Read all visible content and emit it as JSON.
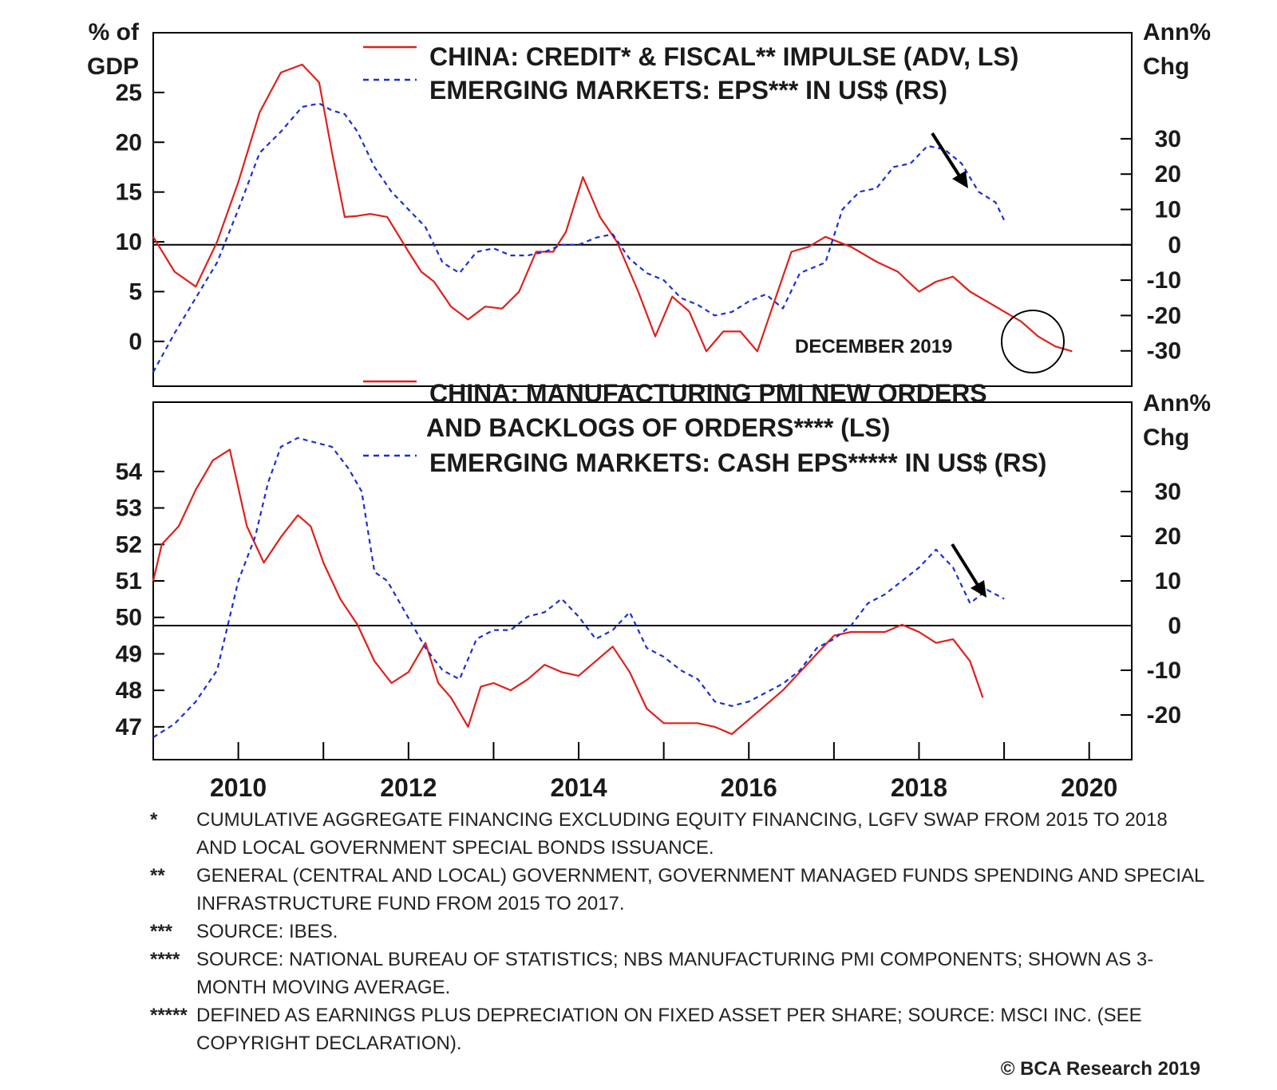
{
  "chart_data": [
    {
      "type": "line",
      "panel": "top",
      "left_axis": {
        "title_lines": [
          "% of",
          "GDP"
        ],
        "ticks": [
          0,
          5,
          10,
          15,
          20,
          25
        ],
        "range": [
          -4.5,
          31
        ]
      },
      "right_axis": {
        "title_lines": [
          "Ann%",
          "Chg"
        ],
        "ticks": [
          30,
          20,
          10,
          0,
          -10,
          -20,
          -30
        ],
        "range": [
          -40,
          60
        ]
      },
      "zero_line": "right axis 0",
      "annotation": "DECEMBER 2019",
      "series": [
        {
          "name": "CHINA: CREDIT* & FISCAL** IMPULSE (ADV, LS)",
          "axis": "left",
          "style": "solid",
          "color": "#e0201b",
          "x": [
            2009.0,
            2009.25,
            2009.5,
            2009.75,
            2010.0,
            2010.25,
            2010.5,
            2010.75,
            2010.95,
            2011.1,
            2011.25,
            2011.4,
            2011.55,
            2011.75,
            2012.0,
            2012.15,
            2012.3,
            2012.5,
            2012.7,
            2012.9,
            2013.1,
            2013.3,
            2013.5,
            2013.7,
            2013.85,
            2014.05,
            2014.25,
            2014.45,
            2014.7,
            2014.9,
            2015.1,
            2015.3,
            2015.5,
            2015.7,
            2015.9,
            2016.1,
            2016.3,
            2016.5,
            2016.7,
            2016.9,
            2017.2,
            2017.5,
            2017.75,
            2018.0,
            2018.2,
            2018.4,
            2018.6,
            2018.8,
            2019.0,
            2019.2,
            2019.4,
            2019.6,
            2019.8
          ],
          "y": [
            10.5,
            7,
            5.5,
            10,
            16,
            23,
            27,
            27.8,
            26,
            19,
            12.5,
            12.6,
            12.8,
            12.5,
            9,
            7,
            6,
            3.5,
            2.2,
            3.5,
            3.3,
            5,
            9,
            9,
            11,
            16.5,
            12.5,
            10,
            5,
            0.5,
            4.5,
            3,
            -1,
            1,
            1,
            -1,
            4,
            9,
            9.5,
            10.5,
            9.5,
            8,
            7,
            5,
            6,
            6.5,
            5,
            4,
            3,
            2,
            0.5,
            -0.5,
            -1
          ]
        },
        {
          "name": "EMERGING MARKETS: EPS*** IN US$ (RS)",
          "axis": "right",
          "style": "dashed",
          "color": "#1a2fd4",
          "x": [
            2009.0,
            2009.25,
            2009.5,
            2009.75,
            2010.0,
            2010.25,
            2010.5,
            2010.75,
            2010.95,
            2011.1,
            2011.25,
            2011.4,
            2011.6,
            2011.8,
            2012.0,
            2012.2,
            2012.4,
            2012.6,
            2012.8,
            2013.0,
            2013.2,
            2013.4,
            2013.6,
            2013.8,
            2014.0,
            2014.2,
            2014.4,
            2014.6,
            2014.8,
            2015.0,
            2015.2,
            2015.4,
            2015.6,
            2015.8,
            2016.0,
            2016.2,
            2016.4,
            2016.6,
            2016.9,
            2017.1,
            2017.3,
            2017.5,
            2017.7,
            2017.9,
            2018.1,
            2018.3,
            2018.5,
            2018.7,
            2018.9,
            2019.0
          ],
          "y": [
            -36,
            -25,
            -15,
            -5,
            10,
            26,
            32,
            39,
            40,
            38,
            37,
            32,
            22,
            15,
            10,
            5,
            -5,
            -8,
            -2,
            -1,
            -3,
            -3,
            -2,
            0,
            0,
            2,
            3,
            -4,
            -8,
            -10,
            -15,
            -17,
            -20,
            -19,
            -16,
            -14,
            -18,
            -8,
            -5,
            10,
            15,
            16,
            22,
            23,
            28,
            27,
            23,
            15,
            12,
            7
          ]
        }
      ]
    },
    {
      "type": "line",
      "panel": "bottom",
      "left_axis": {
        "ticks": [
          47,
          48,
          49,
          50,
          51,
          52,
          53,
          54
        ],
        "range": [
          46.1,
          55.9
        ]
      },
      "right_axis": {
        "title_lines": [
          "Ann%",
          "Chg"
        ],
        "ticks": [
          30,
          20,
          10,
          0,
          -10,
          -20
        ],
        "range": [
          -30,
          50
        ]
      },
      "x_axis": {
        "tick_labels": [
          "2010",
          "2012",
          "2014",
          "2016",
          "2018",
          "2020"
        ],
        "range": [
          2009.0,
          2020.5
        ]
      },
      "zero_line": "right axis 0",
      "series": [
        {
          "name": "CHINA: MANUFACTURING PMI NEW ORDERS AND BACKLOGS OF ORDERS**** (LS)",
          "axis": "left",
          "style": "solid",
          "color": "#e0201b",
          "x": [
            2009.0,
            2009.1,
            2009.3,
            2009.5,
            2009.7,
            2009.9,
            2010.1,
            2010.3,
            2010.5,
            2010.7,
            2010.85,
            2011.0,
            2011.2,
            2011.4,
            2011.6,
            2011.8,
            2012.0,
            2012.2,
            2012.35,
            2012.5,
            2012.7,
            2012.85,
            2013.0,
            2013.2,
            2013.4,
            2013.6,
            2013.8,
            2014.0,
            2014.2,
            2014.4,
            2014.6,
            2014.8,
            2015.0,
            2015.2,
            2015.4,
            2015.6,
            2015.8,
            2016.0,
            2016.2,
            2016.4,
            2016.6,
            2016.8,
            2017.0,
            2017.2,
            2017.4,
            2017.6,
            2017.8,
            2018.0,
            2018.2,
            2018.4,
            2018.6,
            2018.75
          ],
          "y": [
            51,
            52,
            52.5,
            53.5,
            54.3,
            54.6,
            52.5,
            51.5,
            52.2,
            52.8,
            52.5,
            51.5,
            50.5,
            49.8,
            48.8,
            48.2,
            48.5,
            49.3,
            48.2,
            47.8,
            47,
            48.1,
            48.2,
            48,
            48.3,
            48.7,
            48.5,
            48.4,
            48.8,
            49.2,
            48.5,
            47.5,
            47.1,
            47.1,
            47.1,
            47,
            46.8,
            47.2,
            47.6,
            48.0,
            48.5,
            49.0,
            49.5,
            49.6,
            49.6,
            49.6,
            49.8,
            49.6,
            49.3,
            49.4,
            48.8,
            47.8
          ]
        },
        {
          "name": "EMERGING MARKETS: CASH EPS***** IN US$ (RS)",
          "axis": "right",
          "style": "dashed",
          "color": "#1a2fd4",
          "x": [
            2009.0,
            2009.25,
            2009.5,
            2009.75,
            2010.0,
            2010.2,
            2010.35,
            2010.5,
            2010.7,
            2010.9,
            2011.1,
            2011.3,
            2011.45,
            2011.6,
            2011.75,
            2011.9,
            2012.05,
            2012.2,
            2012.4,
            2012.6,
            2012.8,
            2013.0,
            2013.2,
            2013.4,
            2013.6,
            2013.8,
            2014.0,
            2014.2,
            2014.4,
            2014.6,
            2014.8,
            2015.0,
            2015.2,
            2015.4,
            2015.6,
            2015.8,
            2016.0,
            2016.2,
            2016.4,
            2016.6,
            2016.8,
            2017.0,
            2017.2,
            2017.4,
            2017.6,
            2017.8,
            2018.0,
            2018.2,
            2018.4,
            2018.6,
            2018.8,
            2019.0
          ],
          "y": [
            -25,
            -22,
            -17,
            -10,
            10,
            20,
            32,
            40,
            42,
            41,
            40,
            35,
            30,
            12,
            10,
            5,
            0,
            -5,
            -10,
            -12,
            -3,
            -1,
            -1,
            2,
            3,
            6,
            2,
            -3,
            -1,
            3,
            -5,
            -7,
            -10,
            -12,
            -17,
            -18,
            -17,
            -15,
            -13,
            -10,
            -5,
            -3,
            0,
            5,
            7,
            10,
            13,
            17,
            13,
            5,
            8,
            6
          ]
        }
      ]
    }
  ],
  "legend": {
    "top_line1": "CHINA: CREDIT* & FISCAL** IMPULSE (ADV, LS)",
    "top_line2": "EMERGING MARKETS: EPS*** IN US$ (RS)",
    "bottom_line1": "CHINA: MANUFACTURING PMI NEW ORDERS",
    "bottom_line2": "AND BACKLOGS OF ORDERS**** (LS)",
    "bottom_line3": "EMERGING MARKETS: CASH EPS***** IN US$ (RS)"
  },
  "top_annotation": "DECEMBER 2019",
  "footnotes": [
    {
      "mark": "*",
      "text": "CUMULATIVE AGGREGATE FINANCING EXCLUDING EQUITY FINANCING, LGFV SWAP FROM 2015 TO 2018 AND LOCAL GOVERNMENT SPECIAL BONDS ISSUANCE."
    },
    {
      "mark": "**",
      "text": "GENERAL (CENTRAL AND LOCAL) GOVERNMENT, GOVERNMENT MANAGED FUNDS SPENDING AND SPECIAL INFRASTRUCTURE FUND FROM 2015 TO 2017."
    },
    {
      "mark": "***",
      "text": "SOURCE: IBES."
    },
    {
      "mark": "****",
      "text": "SOURCE: NATIONAL BUREAU OF STATISTICS; NBS MANUFACTURING PMI COMPONENTS; SHOWN AS 3-MONTH MOVING AVERAGE."
    },
    {
      "mark": "*****",
      "text": "DEFINED AS EARNINGS PLUS DEPRECIATION ON FIXED ASSET PER SHARE; SOURCE: MSCI INC. (SEE COPYRIGHT DECLARATION)."
    }
  ],
  "copyright": "© BCA Research 2019"
}
